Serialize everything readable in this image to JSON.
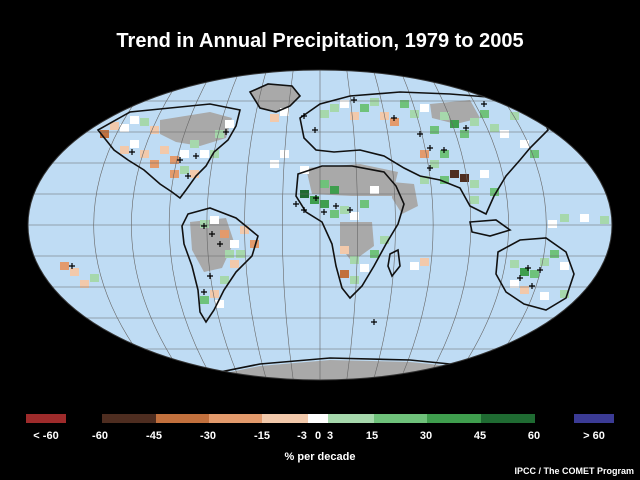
{
  "title": "Trend in Annual Precipitation, 1979 to 2005",
  "colors": {
    "ocean": "#bfdcf4",
    "no_data": "#a9a9a9",
    "background": "#000000"
  },
  "legend": {
    "units": "% per decade",
    "bins": [
      {
        "label": "< -60",
        "color": "#9e2b2b"
      },
      {
        "label": "-60 to -45",
        "color": "#4e2d20"
      },
      {
        "label": "-45 to -30",
        "color": "#c2703d"
      },
      {
        "label": "-30 to -15",
        "color": "#e39a6c"
      },
      {
        "label": "-15 to -3",
        "color": "#f2c9ab"
      },
      {
        "label": "-3 to 3",
        "color": "#ffffff"
      },
      {
        "label": "3 to 15",
        "color": "#a6d8ac"
      },
      {
        "label": "15 to 30",
        "color": "#6fc27b"
      },
      {
        "label": "30 to 45",
        "color": "#3f9e4e"
      },
      {
        "label": "45 to 60",
        "color": "#1f6b32"
      },
      {
        "label": "> 60",
        "color": "#3b3b95"
      }
    ],
    "tick_labels": [
      "< -60",
      "-60",
      "-45",
      "-30",
      "-15",
      "-3",
      "0",
      "3",
      "15",
      "30",
      "45",
      "60",
      "> 60"
    ]
  },
  "credit": "IPCC / The COMET Program"
}
